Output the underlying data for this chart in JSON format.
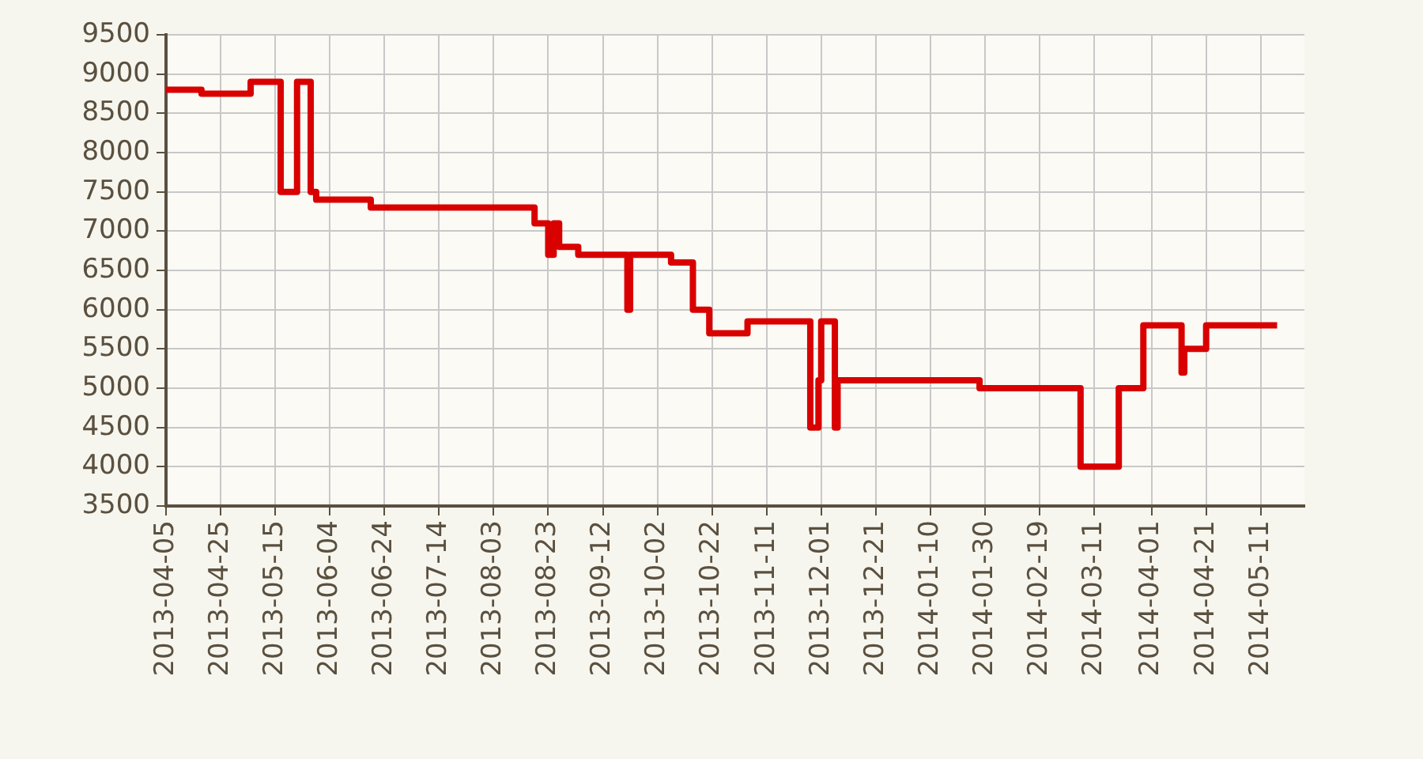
{
  "chart_data": {
    "type": "step",
    "color": "#d90000",
    "grid": true,
    "legend": false,
    "x": [
      "2013-04-05",
      "2013-04-18",
      "2013-05-06",
      "2013-05-17",
      "2013-05-23",
      "2013-05-28",
      "2013-05-30",
      "2013-06-19",
      "2013-08-18",
      "2013-08-23",
      "2013-08-25",
      "2013-08-27",
      "2013-09-03",
      "2013-09-21",
      "2013-09-22",
      "2013-10-07",
      "2013-10-15",
      "2013-10-21",
      "2013-11-04",
      "2013-11-27",
      "2013-11-30",
      "2013-12-01",
      "2013-12-06",
      "2013-12-07",
      "2014-01-28",
      "2014-03-06",
      "2014-03-20",
      "2014-03-29",
      "2014-04-12",
      "2014-04-13",
      "2014-04-21",
      "2014-05-17"
    ],
    "values": [
      8800,
      8750,
      8900,
      7500,
      8900,
      7500,
      7400,
      7300,
      7100,
      6700,
      7100,
      6800,
      6700,
      6000,
      6700,
      6600,
      6000,
      5700,
      5850,
      4500,
      5100,
      5850,
      4500,
      5100,
      5000,
      4000,
      5000,
      5800,
      5200,
      5500,
      5800,
      5800
    ],
    "xlim": [
      "2013-04-05",
      "2014-05-27"
    ],
    "xticks": [
      "2013-04-05",
      "2013-04-25",
      "2013-05-15",
      "2013-06-04",
      "2013-06-24",
      "2013-07-14",
      "2013-08-03",
      "2013-08-23",
      "2013-09-12",
      "2013-10-02",
      "2013-10-22",
      "2013-11-11",
      "2013-12-01",
      "2013-12-21",
      "2014-01-10",
      "2014-01-30",
      "2014-02-19",
      "2014-03-11",
      "2014-04-01",
      "2014-04-21",
      "2014-05-11"
    ],
    "ylim": [
      3500,
      9500
    ],
    "yticks": [
      3500,
      4000,
      4500,
      5000,
      5500,
      6000,
      6500,
      7000,
      7500,
      8000,
      8500,
      9000,
      9500
    ]
  }
}
